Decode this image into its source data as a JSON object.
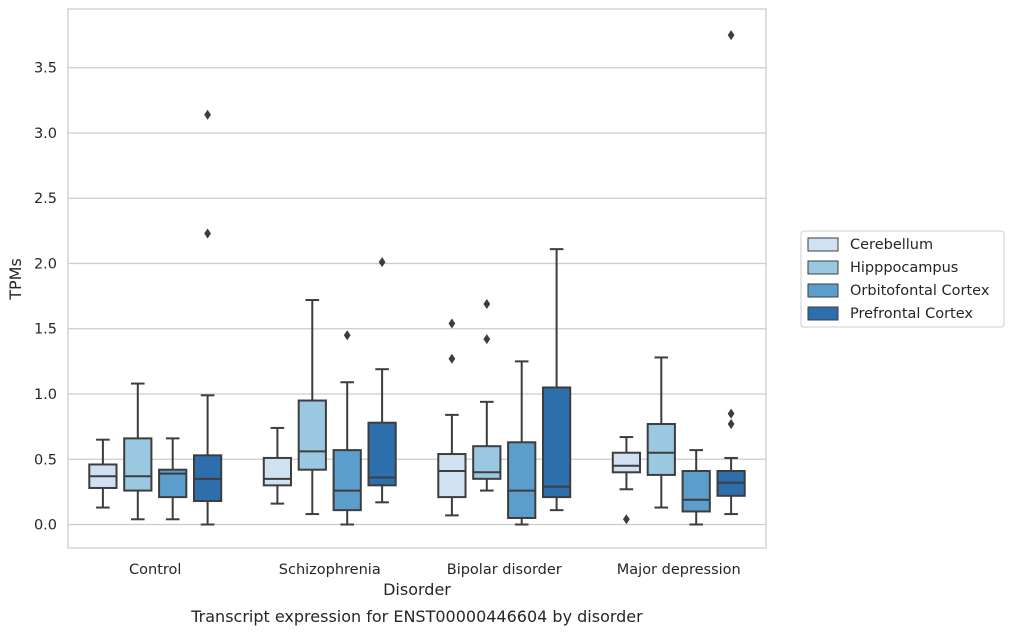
{
  "chart_data": {
    "type": "box",
    "title": "",
    "caption": "Transcript expression for ENST00000446604 by disorder",
    "xlabel": "Disorder",
    "ylabel": "TPMs",
    "ylim": [
      -0.18,
      3.95
    ],
    "yticks": [
      "0.0",
      "0.5",
      "1.0",
      "1.5",
      "2.0",
      "2.5",
      "3.0",
      "3.5"
    ],
    "grid": true,
    "legend_position": "right",
    "categories": [
      "Control",
      "Schizophrenia",
      "Bipolar disorder",
      "Major depression"
    ],
    "series": [
      {
        "name": "Cerebellum",
        "color": "#d0e1f2",
        "boxes": [
          {
            "whislo": 0.13,
            "q1": 0.28,
            "med": 0.37,
            "q3": 0.46,
            "whishi": 0.65,
            "fliers": []
          },
          {
            "whislo": 0.16,
            "q1": 0.3,
            "med": 0.35,
            "q3": 0.51,
            "whishi": 0.74,
            "fliers": []
          },
          {
            "whislo": 0.07,
            "q1": 0.21,
            "med": 0.41,
            "q3": 0.54,
            "whishi": 0.84,
            "fliers": [
              1.27,
              1.54
            ]
          },
          {
            "whislo": 0.27,
            "q1": 0.4,
            "med": 0.45,
            "q3": 0.55,
            "whishi": 0.67,
            "fliers": [
              0.04
            ]
          }
        ]
      },
      {
        "name": "Hipppocampus",
        "color": "#9ac8e0",
        "boxes": [
          {
            "whislo": 0.04,
            "q1": 0.26,
            "med": 0.37,
            "q3": 0.66,
            "whishi": 1.08,
            "fliers": []
          },
          {
            "whislo": 0.08,
            "q1": 0.42,
            "med": 0.56,
            "q3": 0.95,
            "whishi": 1.72,
            "fliers": []
          },
          {
            "whislo": 0.26,
            "q1": 0.35,
            "med": 0.4,
            "q3": 0.6,
            "whishi": 0.94,
            "fliers": [
              1.42,
              1.69
            ]
          },
          {
            "whislo": 0.13,
            "q1": 0.38,
            "med": 0.55,
            "q3": 0.77,
            "whishi": 1.28,
            "fliers": []
          }
        ]
      },
      {
        "name": "Orbitofontal Cortex",
        "color": "#5b9ecb",
        "boxes": [
          {
            "whislo": 0.04,
            "q1": 0.21,
            "med": 0.39,
            "q3": 0.42,
            "whishi": 0.66,
            "fliers": []
          },
          {
            "whislo": 0.0,
            "q1": 0.11,
            "med": 0.26,
            "q3": 0.57,
            "whishi": 1.09,
            "fliers": [
              1.45
            ]
          },
          {
            "whislo": 0.0,
            "q1": 0.05,
            "med": 0.26,
            "q3": 0.63,
            "whishi": 1.25,
            "fliers": []
          },
          {
            "whislo": 0.0,
            "q1": 0.1,
            "med": 0.19,
            "q3": 0.41,
            "whishi": 0.57,
            "fliers": []
          }
        ]
      },
      {
        "name": "Prefrontal Cortex",
        "color": "#2d6fad",
        "boxes": [
          {
            "whislo": 0.0,
            "q1": 0.18,
            "med": 0.35,
            "q3": 0.53,
            "whishi": 0.99,
            "fliers": [
              2.23,
              3.14
            ]
          },
          {
            "whislo": 0.17,
            "q1": 0.3,
            "med": 0.36,
            "q3": 0.78,
            "whishi": 1.19,
            "fliers": [
              2.01
            ]
          },
          {
            "whislo": 0.11,
            "q1": 0.21,
            "med": 0.29,
            "q3": 1.05,
            "whishi": 2.11,
            "fliers": []
          },
          {
            "whislo": 0.08,
            "q1": 0.22,
            "med": 0.32,
            "q3": 0.41,
            "whishi": 0.51,
            "fliers": [
              0.77,
              0.85,
              3.75
            ]
          }
        ]
      }
    ]
  }
}
